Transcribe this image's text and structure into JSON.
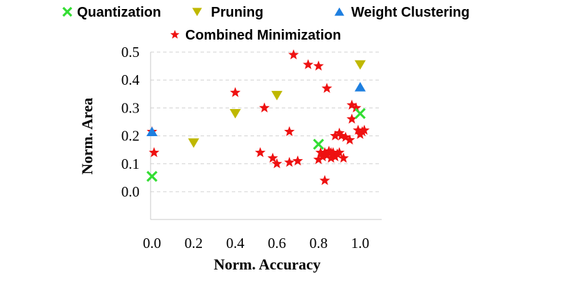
{
  "chart_data": {
    "type": "scatter",
    "xlabel": "Norm. Accuracy",
    "ylabel": "Norm. Area",
    "xlim": [
      0.0,
      1.05
    ],
    "ylim": [
      -0.1,
      0.5
    ],
    "xticks": [
      "0.0",
      "0.2",
      "0.4",
      "0.6",
      "0.8",
      "1.0"
    ],
    "xtick_values": [
      0.0,
      0.2,
      0.4,
      0.6,
      0.8,
      1.0
    ],
    "yticks": [
      "0.0",
      "0.1",
      "0.2",
      "0.3",
      "0.4",
      "0.5"
    ],
    "ytick_values": [
      0.0,
      0.1,
      0.2,
      0.3,
      0.4,
      0.5
    ],
    "grid": "horizontal dashed",
    "legend_position": "top",
    "series": [
      {
        "name": "Quantization",
        "marker": "x",
        "color": "#33dd33",
        "points": [
          [
            0.0,
            0.055
          ],
          [
            0.8,
            0.17
          ],
          [
            1.0,
            0.28
          ]
        ]
      },
      {
        "name": "Pruning",
        "marker": "triangle-down",
        "color": "#bfb800",
        "points": [
          [
            0.2,
            0.175
          ],
          [
            0.4,
            0.28
          ],
          [
            0.6,
            0.345
          ],
          [
            1.0,
            0.455
          ]
        ]
      },
      {
        "name": "Weight Clustering",
        "marker": "triangle-up",
        "color": "#1e7fe0",
        "points": [
          [
            0.0,
            0.215
          ],
          [
            1.0,
            0.375
          ]
        ]
      },
      {
        "name": "Combined Minimization",
        "marker": "star",
        "color": "#ee1111",
        "points": [
          [
            0.0,
            0.215
          ],
          [
            0.01,
            0.14
          ],
          [
            0.4,
            0.355
          ],
          [
            0.52,
            0.14
          ],
          [
            0.54,
            0.3
          ],
          [
            0.58,
            0.12
          ],
          [
            0.6,
            0.1
          ],
          [
            0.66,
            0.105
          ],
          [
            0.66,
            0.215
          ],
          [
            0.68,
            0.49
          ],
          [
            0.7,
            0.11
          ],
          [
            0.75,
            0.455
          ],
          [
            0.8,
            0.45
          ],
          [
            0.84,
            0.37
          ],
          [
            0.83,
            0.04
          ],
          [
            0.8,
            0.115
          ],
          [
            0.81,
            0.14
          ],
          [
            0.82,
            0.125
          ],
          [
            0.83,
            0.14
          ],
          [
            0.84,
            0.13
          ],
          [
            0.85,
            0.145
          ],
          [
            0.86,
            0.12
          ],
          [
            0.87,
            0.14
          ],
          [
            0.88,
            0.125
          ],
          [
            0.89,
            0.135
          ],
          [
            0.88,
            0.2
          ],
          [
            0.9,
            0.21
          ],
          [
            0.91,
            0.2
          ],
          [
            0.92,
            0.12
          ],
          [
            0.93,
            0.195
          ],
          [
            0.95,
            0.185
          ],
          [
            0.96,
            0.26
          ],
          [
            0.96,
            0.31
          ],
          [
            0.98,
            0.3
          ],
          [
            0.99,
            0.22
          ],
          [
            1.0,
            0.205
          ],
          [
            1.01,
            0.215
          ],
          [
            1.02,
            0.22
          ],
          [
            0.9,
            0.14
          ],
          [
            0.86,
            0.14
          ]
        ]
      }
    ]
  }
}
